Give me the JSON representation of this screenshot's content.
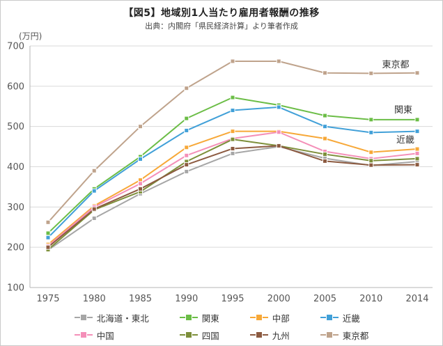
{
  "chart_data": {
    "type": "line",
    "title": "【図5】地域別1人当たり雇用者報酬の推移",
    "subtitle": "出典：内閣府「県民経済計算」より筆者作成",
    "unit_label": "(万円)",
    "x": [
      "1975",
      "1980",
      "1985",
      "1990",
      "1995",
      "2000",
      "2005",
      "2010",
      "2014"
    ],
    "ylim": [
      100,
      700
    ],
    "ytick_step": 100,
    "grid": "horizontal",
    "legend_position": "bottom",
    "series": [
      {
        "name": "北海道・東北",
        "color": "#a6a6a6",
        "values": [
          193,
          272,
          333,
          388,
          433,
          450,
          421,
          403,
          413
        ]
      },
      {
        "name": "関東",
        "color": "#6bbd46",
        "values": [
          235,
          345,
          425,
          520,
          572,
          553,
          527,
          517,
          517
        ]
      },
      {
        "name": "中部",
        "color": "#f7a838",
        "values": [
          207,
          303,
          367,
          448,
          488,
          488,
          470,
          436,
          444
        ]
      },
      {
        "name": "近畿",
        "color": "#41a0d8",
        "values": [
          224,
          340,
          419,
          490,
          540,
          548,
          500,
          485,
          488
        ]
      },
      {
        "name": "中国",
        "color": "#f48fb8",
        "values": [
          203,
          300,
          358,
          428,
          470,
          486,
          438,
          420,
          433
        ]
      },
      {
        "name": "四国",
        "color": "#7d8f3a",
        "values": [
          194,
          293,
          338,
          413,
          468,
          452,
          431,
          415,
          420
        ]
      },
      {
        "name": "九州",
        "color": "#8c5a40",
        "values": [
          200,
          295,
          345,
          405,
          445,
          452,
          414,
          404,
          405
        ]
      },
      {
        "name": "東京都",
        "color": "#bfa38c",
        "values": [
          262,
          390,
          500,
          595,
          662,
          662,
          633,
          632,
          633
        ]
      }
    ],
    "annotations": [
      {
        "text": "東京都",
        "x": 567,
        "y": 40
      },
      {
        "text": "関東",
        "x": 578,
        "y": 105
      },
      {
        "text": "近畿",
        "x": 581,
        "y": 148
      }
    ]
  }
}
